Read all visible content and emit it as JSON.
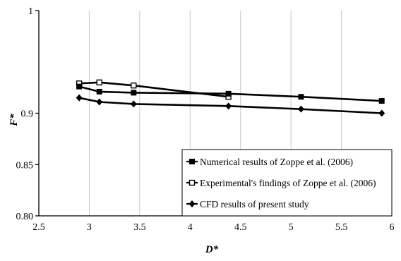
{
  "chart_data": {
    "type": "line",
    "xlabel": "D*",
    "ylabel": "F*",
    "xlim": [
      2.5,
      6
    ],
    "ylim": [
      0.8,
      1
    ],
    "x_ticks": [
      "2.5",
      "3",
      "3.5",
      "4",
      "4.5",
      "5",
      "5.5",
      "6"
    ],
    "y_ticks": [
      "0.80",
      "0.85",
      "0.9",
      "1"
    ],
    "grid": "vertical",
    "legend_position": "bottom-right",
    "series": [
      {
        "name": "Numerical results of Zoppe et al. (2006)",
        "marker": "filled-square",
        "color": "#000000",
        "x": [
          2.9,
          3.1,
          3.44,
          4.38,
          5.1,
          5.9
        ],
        "y": [
          0.926,
          0.921,
          0.92,
          0.919,
          0.916,
          0.912
        ]
      },
      {
        "name": "Experimental's findings of Zoppe et al. (2006)",
        "marker": "open-square",
        "color": "#000000",
        "x": [
          2.9,
          3.1,
          3.44,
          4.38
        ],
        "y": [
          0.929,
          0.93,
          0.927,
          0.916
        ]
      },
      {
        "name": "CFD results of present study",
        "marker": "filled-diamond",
        "color": "#000000",
        "x": [
          2.9,
          3.1,
          3.44,
          4.38,
          5.1,
          5.9
        ],
        "y": [
          0.915,
          0.911,
          0.909,
          0.907,
          0.904,
          0.9
        ]
      }
    ]
  }
}
